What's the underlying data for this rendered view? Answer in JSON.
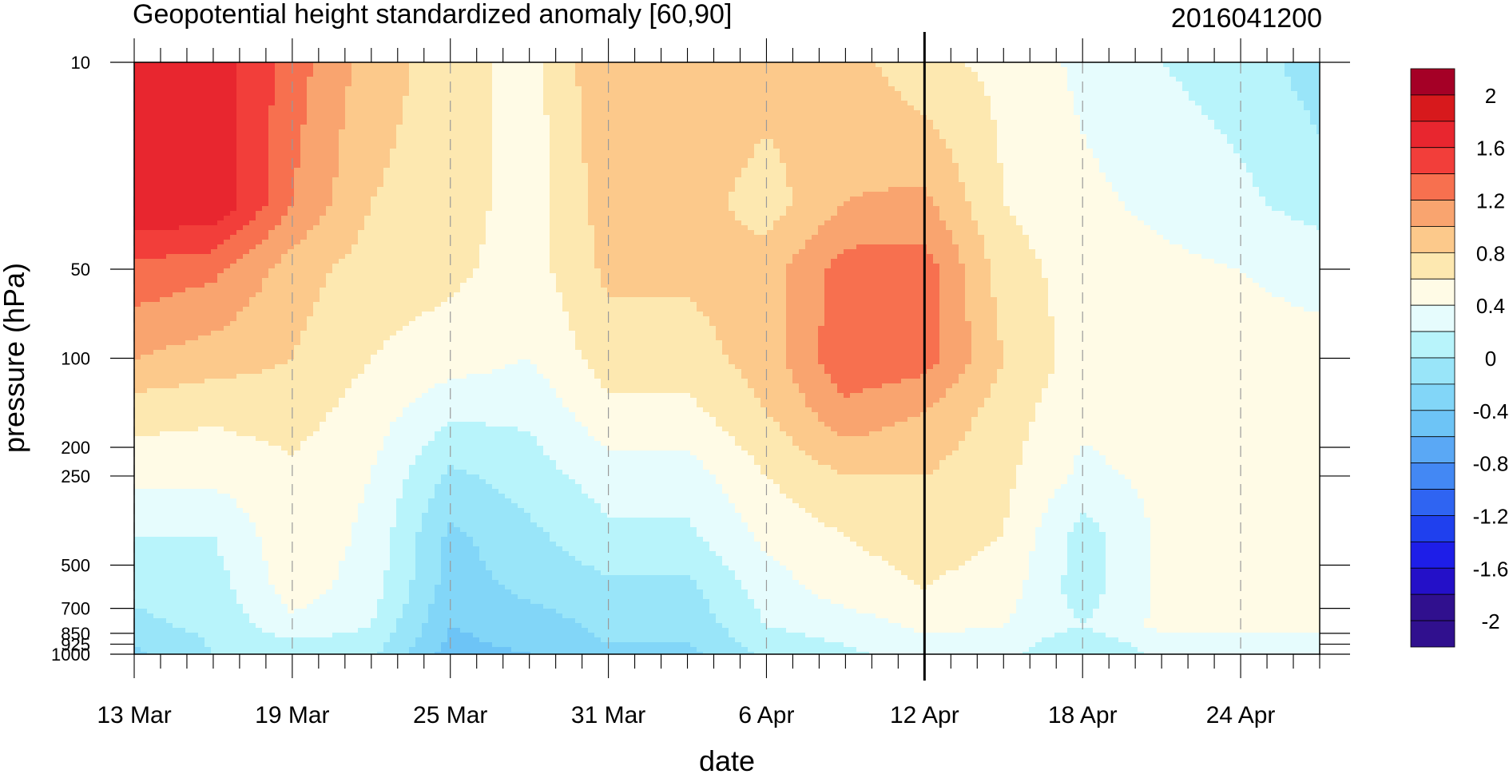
{
  "chart_data": {
    "type": "heatmap",
    "subtype": "filled-contour time-pressure section",
    "title": "Geopotential height standardized anomaly [60,90]",
    "timestamp": "2016041200",
    "xlabel": "date",
    "ylabel": "pressure (hPa)",
    "x_tick_labels": [
      "13 Mar",
      "19 Mar",
      "25 Mar",
      "31 Mar",
      "6 Apr",
      "12 Apr",
      "18 Apr",
      "24 Apr"
    ],
    "x_tick_days": [
      0,
      6,
      12,
      18,
      24,
      30,
      36,
      42
    ],
    "x_range_days": [
      0,
      45
    ],
    "y_scale": "log",
    "y_inverted": true,
    "y_range_hpa": [
      10,
      1000
    ],
    "y_ticks": [
      10,
      50,
      100,
      200,
      250,
      500,
      700,
      850,
      925,
      1000
    ],
    "y_tick_labels": [
      "10",
      "50",
      "100",
      "200",
      "250",
      "500",
      "700",
      "850",
      "925",
      "1000"
    ],
    "current_day_line": 30,
    "colorbar": {
      "labels": [
        "2",
        "1.6",
        "1.2",
        "0.8",
        "0.4",
        "0",
        "-0.4",
        "-0.8",
        "-1.2",
        "-1.6",
        "-2"
      ],
      "levels_top_to_bottom": [
        2.2,
        2.0,
        1.8,
        1.6,
        1.4,
        1.2,
        1.0,
        0.8,
        0.6,
        0.4,
        0.2,
        0.0,
        -0.2,
        -0.4,
        -0.6,
        -0.8,
        -1.0,
        -1.2,
        -1.4,
        -1.6,
        -1.8,
        -2.0,
        -2.2
      ],
      "colors_top_to_bottom": [
        "#a50026",
        "#d7191c",
        "#e8262f",
        "#f23e3a",
        "#f7704f",
        "#f9a46f",
        "#fcc98b",
        "#fde8b0",
        "#fffbe6",
        "#e6fcfd",
        "#b8f4fb",
        "#99e5f9",
        "#82d6f8",
        "#6dc4f6",
        "#5aa8f5",
        "#4388f4",
        "#2f64f2",
        "#1f40ee",
        "#1e1ee8",
        "#2410c8",
        "#30108e",
        "#30108e"
      ]
    },
    "x_days": [
      0,
      3,
      6,
      9,
      12,
      15,
      18,
      21,
      24,
      27,
      30,
      33,
      36,
      39,
      42,
      45
    ],
    "pressure_levels": [
      10,
      30,
      50,
      100,
      150,
      250,
      400,
      600,
      800,
      925,
      1000
    ],
    "z": [
      [
        1.7,
        1.75,
        1.3,
        0.9,
        0.7,
        0.5,
        1.0,
        1.0,
        0.9,
        0.9,
        0.65,
        0.55,
        0.35,
        0.2,
        0.1,
        -0.1
      ],
      [
        1.75,
        1.8,
        1.2,
        0.8,
        0.7,
        0.5,
        0.9,
        0.9,
        0.7,
        1.0,
        1.05,
        0.6,
        0.45,
        0.35,
        0.25,
        0.1
      ],
      [
        1.35,
        1.25,
        0.9,
        0.7,
        0.65,
        0.5,
        0.85,
        0.85,
        0.9,
        1.3,
        1.3,
        0.7,
        0.5,
        0.45,
        0.4,
        0.35
      ],
      [
        1.0,
        0.9,
        0.8,
        0.6,
        0.5,
        0.4,
        0.7,
        0.7,
        0.9,
        1.35,
        1.3,
        0.8,
        0.5,
        0.45,
        0.45,
        0.45
      ],
      [
        0.7,
        0.65,
        0.7,
        0.5,
        0.25,
        0.25,
        0.55,
        0.55,
        0.8,
        1.15,
        1.0,
        0.7,
        0.45,
        0.5,
        0.45,
        0.45
      ],
      [
        0.45,
        0.45,
        0.55,
        0.4,
        -0.05,
        0.1,
        0.3,
        0.3,
        0.6,
        0.8,
        0.8,
        0.65,
        0.35,
        0.45,
        0.5,
        0.5
      ],
      [
        0.2,
        0.2,
        0.55,
        0.35,
        -0.25,
        -0.05,
        0.15,
        0.15,
        0.45,
        0.6,
        0.7,
        0.6,
        0.1,
        0.45,
        0.5,
        0.5
      ],
      [
        0.05,
        0.1,
        0.5,
        0.3,
        -0.3,
        -0.15,
        -0.05,
        -0.05,
        0.3,
        0.5,
        0.6,
        0.5,
        0.1,
        0.45,
        0.5,
        0.5
      ],
      [
        -0.05,
        0.05,
        0.35,
        0.2,
        -0.4,
        -0.3,
        -0.15,
        -0.15,
        0.2,
        0.3,
        0.45,
        0.4,
        0.2,
        0.45,
        0.45,
        0.45
      ],
      [
        -0.2,
        0.02,
        0.15,
        0.1,
        -0.45,
        -0.35,
        -0.2,
        -0.2,
        0.1,
        0.2,
        0.35,
        0.3,
        0.05,
        0.3,
        0.35,
        0.35
      ],
      [
        -0.25,
        0.0,
        0.05,
        0.05,
        -0.5,
        -0.4,
        -0.3,
        -0.25,
        0.05,
        0.15,
        0.3,
        0.25,
        0.0,
        0.25,
        0.3,
        0.3
      ]
    ]
  }
}
